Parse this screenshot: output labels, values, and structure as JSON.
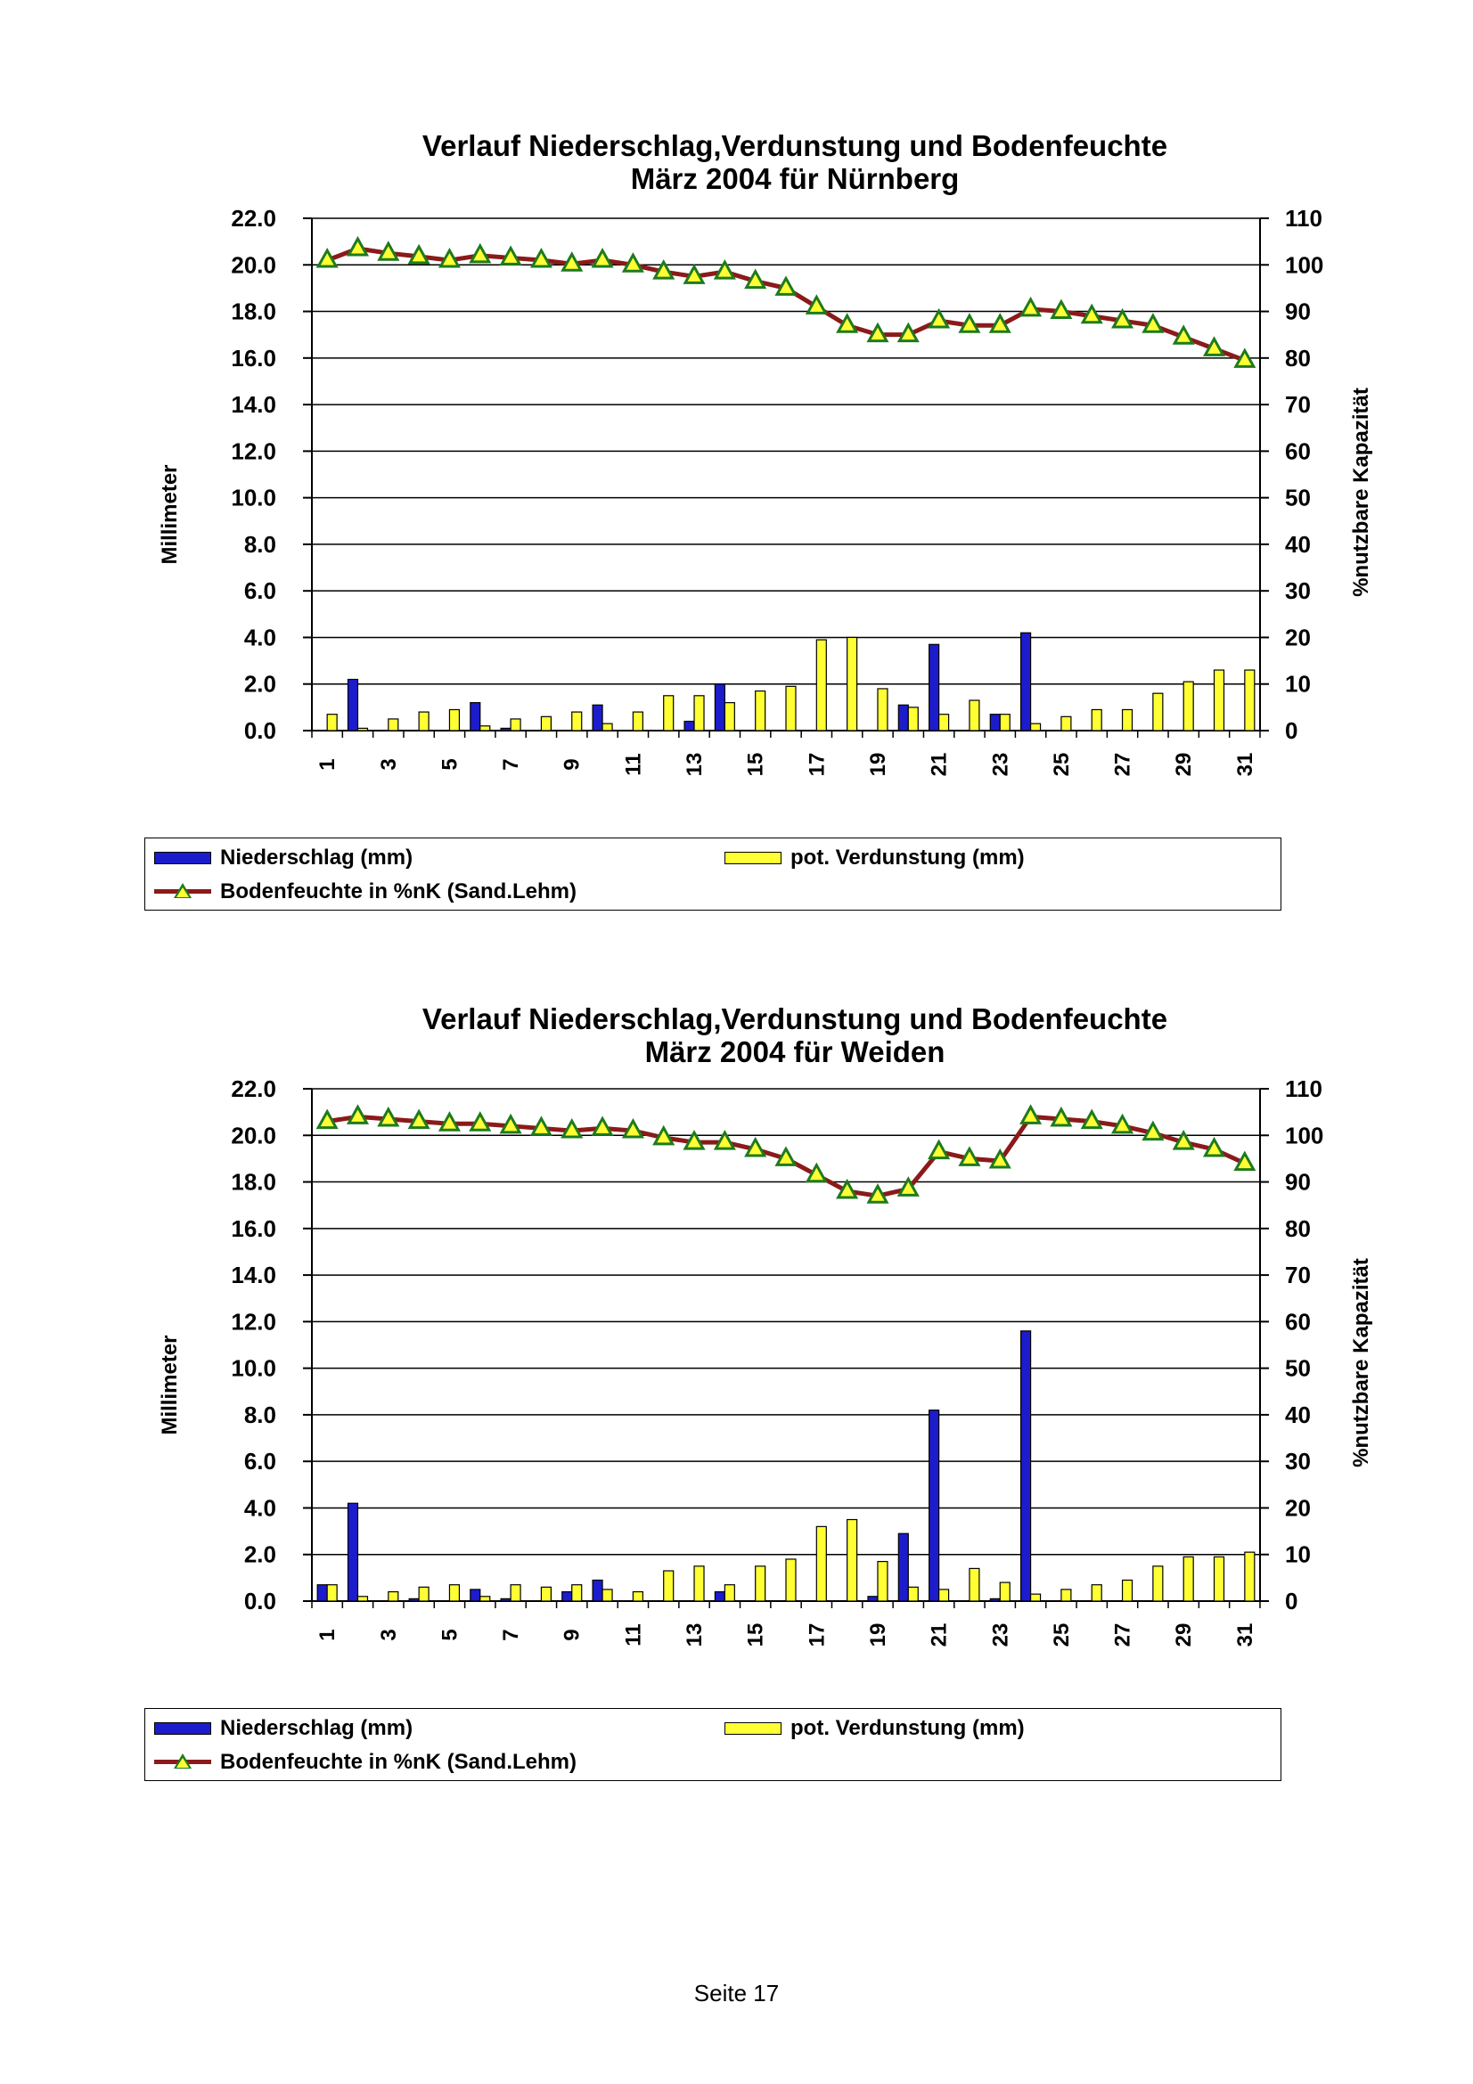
{
  "page": {
    "footer": "Seite 17"
  },
  "legend": {
    "precip": "Niederschlag (mm)",
    "evap": "pot. Verdunstung (mm)",
    "soil": "Bodenfeuchte in %nK (Sand.Lehm)"
  },
  "colors": {
    "precip": "#1c1ccc",
    "evap": "#ffff33",
    "soil_line": "#8b1a1a",
    "marker": "#1e7a1e"
  },
  "chart_data": [
    {
      "type": "bar",
      "title": "Verlauf Niederschlag,Verdunstung und Bodenfeuchte",
      "subtitle": "März 2004 für Nürnberg",
      "ylabel": "Millimeter",
      "y2label": "%nutzbare Kapazität",
      "ylim": [
        0,
        22
      ],
      "y2lim": [
        0,
        110
      ],
      "yticks": [
        "0.0",
        "2.0",
        "4.0",
        "6.0",
        "8.0",
        "10.0",
        "12.0",
        "14.0",
        "16.0",
        "18.0",
        "20.0",
        "22.0"
      ],
      "y2ticks": [
        "0",
        "10",
        "20",
        "30",
        "40",
        "50",
        "60",
        "70",
        "80",
        "90",
        "100",
        "110"
      ],
      "x": [
        1,
        2,
        3,
        4,
        5,
        6,
        7,
        8,
        9,
        10,
        11,
        12,
        13,
        14,
        15,
        16,
        17,
        18,
        19,
        20,
        21,
        22,
        23,
        24,
        25,
        26,
        27,
        28,
        29,
        30,
        31
      ],
      "xticks": [
        "1",
        "3",
        "5",
        "7",
        "9",
        "11",
        "13",
        "15",
        "17",
        "19",
        "21",
        "23",
        "25",
        "27",
        "29",
        "31"
      ],
      "grid": true,
      "series": [
        {
          "name": "Niederschlag (mm)",
          "axis": "left",
          "kind": "bar",
          "values": [
            0,
            2.2,
            0,
            0,
            0,
            1.2,
            0.1,
            0,
            0,
            1.1,
            0,
            0,
            0.4,
            2.0,
            0,
            0,
            0,
            0,
            0,
            1.1,
            3.7,
            0,
            0.7,
            4.2,
            0,
            0,
            0,
            0,
            0,
            0,
            0
          ]
        },
        {
          "name": "pot. Verdunstung (mm)",
          "axis": "left",
          "kind": "bar",
          "values": [
            0.7,
            0.1,
            0.5,
            0.8,
            0.9,
            0.2,
            0.5,
            0.6,
            0.8,
            0.3,
            0.8,
            1.5,
            1.5,
            1.2,
            1.7,
            1.9,
            3.9,
            4.0,
            1.8,
            1.0,
            0.7,
            1.3,
            0.7,
            0.3,
            0.6,
            0.9,
            0.9,
            1.6,
            2.1,
            2.6,
            2.6
          ]
        },
        {
          "name": "Bodenfeuchte in %nK (Sand.Lehm)",
          "axis": "right",
          "kind": "line",
          "values": [
            101,
            103.5,
            102.5,
            101.8,
            101,
            102,
            101.5,
            101,
            100.2,
            101,
            100,
            98.5,
            97.5,
            98.5,
            96.5,
            95,
            91,
            87,
            85,
            85,
            88,
            87,
            87,
            90.5,
            90,
            89,
            88,
            87,
            84.5,
            82,
            79.5
          ]
        }
      ]
    },
    {
      "type": "bar",
      "title": "Verlauf Niederschlag,Verdunstung und Bodenfeuchte",
      "subtitle": "März 2004 für Weiden",
      "ylabel": "Millimeter",
      "y2label": "%nutzbare Kapazität",
      "ylim": [
        0,
        22
      ],
      "y2lim": [
        0,
        110
      ],
      "yticks": [
        "0.0",
        "2.0",
        "4.0",
        "6.0",
        "8.0",
        "10.0",
        "12.0",
        "14.0",
        "16.0",
        "18.0",
        "20.0",
        "22.0"
      ],
      "y2ticks": [
        "0",
        "10",
        "20",
        "30",
        "40",
        "50",
        "60",
        "70",
        "80",
        "90",
        "100",
        "110"
      ],
      "x": [
        1,
        2,
        3,
        4,
        5,
        6,
        7,
        8,
        9,
        10,
        11,
        12,
        13,
        14,
        15,
        16,
        17,
        18,
        19,
        20,
        21,
        22,
        23,
        24,
        25,
        26,
        27,
        28,
        29,
        30,
        31
      ],
      "xticks": [
        "1",
        "3",
        "5",
        "7",
        "9",
        "11",
        "13",
        "15",
        "17",
        "19",
        "21",
        "23",
        "25",
        "27",
        "29",
        "31"
      ],
      "grid": true,
      "series": [
        {
          "name": "Niederschlag (mm)",
          "axis": "left",
          "kind": "bar",
          "values": [
            0.7,
            4.2,
            0,
            0.1,
            0,
            0.5,
            0.1,
            0,
            0.4,
            0.9,
            0,
            0,
            0,
            0.4,
            0,
            0,
            0,
            0,
            0.2,
            2.9,
            8.2,
            0,
            0.1,
            11.6,
            0,
            0,
            0,
            0,
            0,
            0,
            0
          ]
        },
        {
          "name": "pot. Verdunstung (mm)",
          "axis": "left",
          "kind": "bar",
          "values": [
            0.7,
            0.2,
            0.4,
            0.6,
            0.7,
            0.2,
            0.7,
            0.6,
            0.7,
            0.5,
            0.4,
            1.3,
            1.5,
            0.7,
            1.5,
            1.8,
            3.2,
            3.5,
            1.7,
            0.6,
            0.5,
            1.4,
            0.8,
            0.3,
            0.5,
            0.7,
            0.9,
            1.5,
            1.9,
            1.9,
            2.1
          ]
        },
        {
          "name": "Bodenfeuchte in %nK (Sand.Lehm)",
          "axis": "right",
          "kind": "line",
          "values": [
            103,
            104,
            103.5,
            103,
            102.5,
            102.5,
            102,
            101.5,
            101,
            101.5,
            101,
            99.5,
            98.5,
            98.5,
            97,
            95,
            91.5,
            88,
            87,
            88.5,
            96.5,
            95,
            94.5,
            104,
            103.5,
            103,
            102,
            100.5,
            98.5,
            97,
            94
          ]
        }
      ]
    }
  ]
}
